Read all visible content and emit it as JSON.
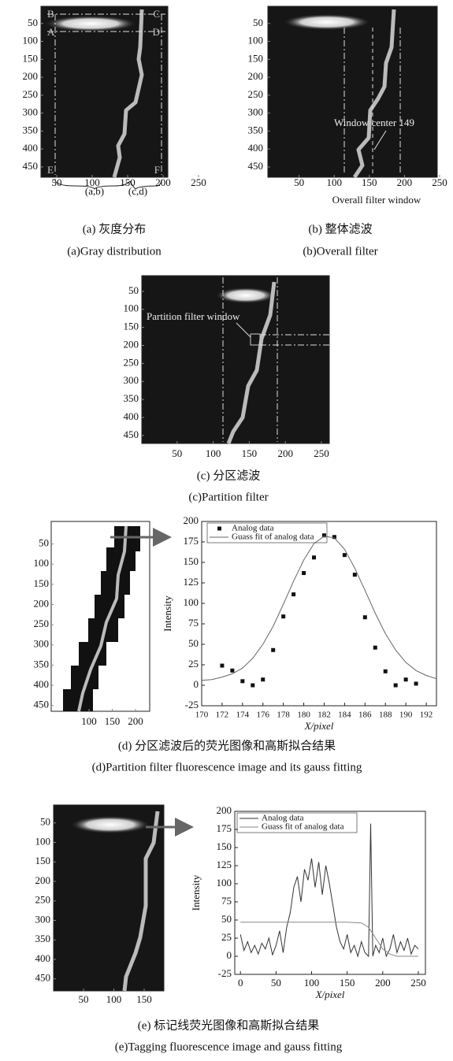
{
  "figures": [
    {
      "xlim": [
        0,
        250
      ],
      "ylim": [
        0,
        480
      ],
      "xticks": [
        50,
        100,
        150,
        200,
        250
      ],
      "yticks": [
        50,
        100,
        150,
        200,
        250,
        300,
        350,
        400,
        450
      ],
      "annotations": [
        "B",
        "C",
        "A",
        "D",
        "E",
        "F",
        "(a,b)",
        "(c,d)"
      ],
      "captions": [
        "(a) 灰度分布",
        "(a)Gray distribution"
      ]
    },
    {
      "xlim": [
        0,
        250
      ],
      "ylim": [
        0,
        480
      ],
      "xticks": [
        50,
        100,
        150,
        200,
        250
      ],
      "yticks": [
        50,
        100,
        150,
        200,
        250,
        300,
        350,
        400,
        450
      ],
      "annotations": [
        "Window center 149",
        "Overall filter window"
      ],
      "captions": [
        "(b) 整体滤波",
        "(b)Overall filter"
      ]
    },
    {
      "xlim": [
        0,
        250
      ],
      "ylim": [
        0,
        480
      ],
      "xticks": [
        50,
        100,
        150,
        200,
        250
      ],
      "yticks": [
        50,
        100,
        150,
        200,
        250,
        300,
        350,
        400,
        450
      ],
      "annotations": [
        "Partition filter window"
      ],
      "captions": [
        "(c) 分区滤波",
        "(c)Partition filter"
      ]
    },
    {
      "xlim": [
        0,
        250
      ],
      "ylim": [
        0,
        480
      ],
      "xticks": [
        100,
        150,
        200
      ],
      "yticks": [
        50,
        100,
        150,
        200,
        250,
        300,
        350,
        400,
        450
      ],
      "annotations": [],
      "captions": [
        "(d) 分区滤波后的荧光图像和高斯拟合结果",
        "(d)Partition filter fluorescence image and its gauss fitting"
      ]
    },
    {
      "xlim": [
        0,
        250
      ],
      "ylim": [
        0,
        480
      ],
      "xticks": [
        50,
        100,
        150
      ],
      "yticks": [
        50,
        100,
        150,
        200,
        250,
        300,
        350,
        400,
        450
      ],
      "annotations": [],
      "captions": [
        "(e) 标记线荧光图像和高斯拟合结果",
        "(e)Tagging fluorescence image and gauss fitting"
      ]
    }
  ],
  "chart_data": [
    {
      "type": "scatter",
      "xlabel": "X/pixel",
      "ylabel": "Intensity",
      "xlim": [
        170,
        193
      ],
      "ylim": [
        -25,
        200
      ],
      "xticks": [
        170,
        172,
        174,
        176,
        178,
        180,
        182,
        184,
        186,
        188,
        190,
        192
      ],
      "yticks": [
        -25,
        0,
        25,
        50,
        75,
        100,
        125,
        150,
        175,
        200
      ],
      "series": [
        {
          "name": "Analog data",
          "color": "#111111",
          "style": "markers",
          "x": [
            172,
            173,
            174,
            175,
            176,
            177,
            178,
            179,
            180,
            181,
            182,
            183,
            184,
            185,
            186,
            187,
            188,
            189,
            190,
            191
          ],
          "values": [
            24,
            18,
            5,
            0,
            7,
            43,
            84,
            111,
            137,
            156,
            183,
            181,
            159,
            135,
            83,
            46,
            17,
            0,
            7,
            2
          ]
        },
        {
          "name": "Guass fit of analog data",
          "color": "#666666",
          "style": "line",
          "x": [
            170,
            171,
            172,
            173,
            174,
            175,
            176,
            177,
            178,
            179,
            180,
            181,
            182,
            183,
            184,
            185,
            186,
            187,
            188,
            189,
            190,
            191,
            192,
            193
          ],
          "values": [
            6,
            7,
            10,
            14,
            21,
            33,
            50,
            72,
            99,
            127,
            153,
            173,
            182,
            180,
            166,
            143,
            116,
            88,
            63,
            43,
            28,
            18,
            12,
            8
          ]
        }
      ]
    },
    {
      "type": "line",
      "xlabel": "X/pixel",
      "ylabel": "Intensity",
      "xlim": [
        -8,
        260
      ],
      "ylim": [
        -25,
        200
      ],
      "xticks": [
        0,
        50,
        100,
        150,
        200,
        250
      ],
      "yticks": [
        -25,
        0,
        25,
        50,
        75,
        100,
        125,
        150,
        175,
        200
      ],
      "series": [
        {
          "name": "Analog data",
          "color": "#333333",
          "style": "line",
          "x": [
            0,
            5,
            10,
            15,
            20,
            25,
            30,
            35,
            40,
            45,
            50,
            55,
            60,
            65,
            70,
            75,
            80,
            85,
            90,
            95,
            100,
            105,
            110,
            115,
            120,
            125,
            130,
            135,
            140,
            145,
            150,
            155,
            160,
            165,
            170,
            175,
            180,
            183,
            186,
            190,
            195,
            200,
            205,
            210,
            215,
            220,
            225,
            230,
            235,
            240,
            245,
            250
          ],
          "values": [
            30,
            8,
            20,
            5,
            15,
            3,
            18,
            10,
            25,
            2,
            15,
            35,
            5,
            40,
            60,
            95,
            110,
            75,
            120,
            105,
            135,
            95,
            130,
            85,
            125,
            100,
            70,
            40,
            20,
            10,
            30,
            5,
            15,
            0,
            20,
            5,
            0,
            183,
            0,
            15,
            5,
            25,
            0,
            10,
            30,
            5,
            20,
            8,
            25,
            3,
            15,
            10
          ]
        },
        {
          "name": "Guass fit of analog data",
          "color": "#888888",
          "style": "line",
          "x": [
            0,
            50,
            100,
            150,
            170,
            180,
            190,
            200,
            210,
            220,
            250
          ],
          "values": [
            47,
            47,
            47,
            47,
            46,
            40,
            25,
            10,
            3,
            0,
            0
          ]
        }
      ]
    }
  ]
}
